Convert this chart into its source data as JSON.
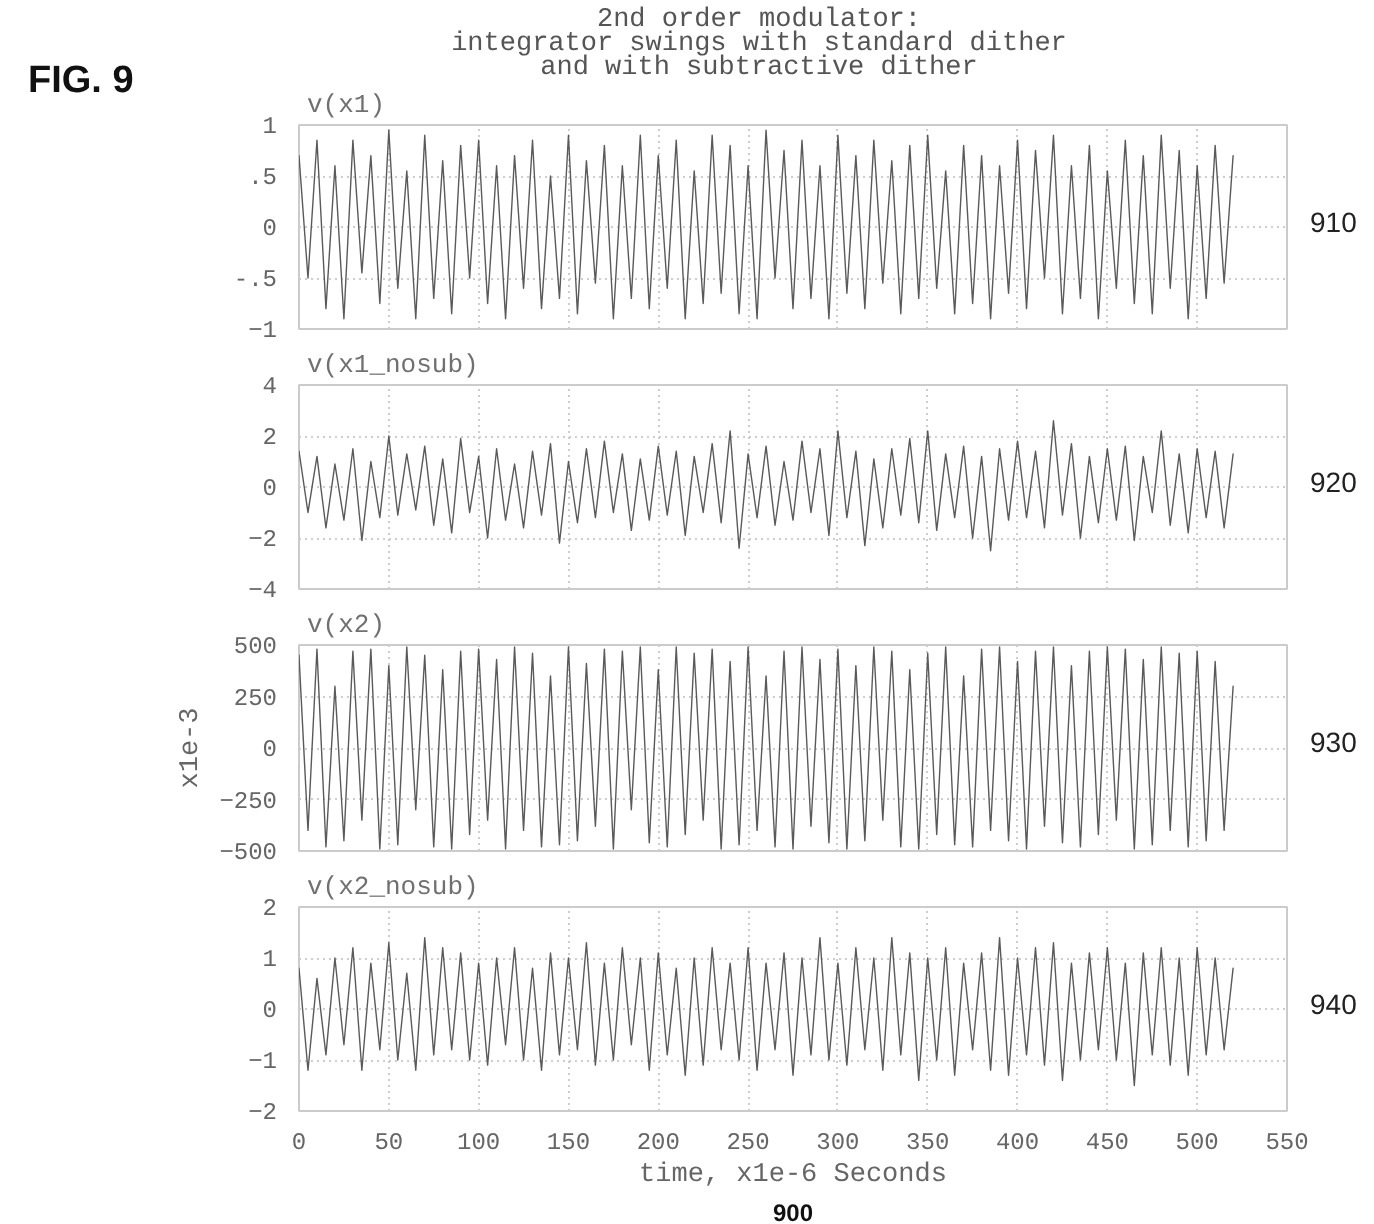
{
  "chart_data": [
    {
      "type": "line",
      "title": "2nd order modulator:\nintegrator swings with standard dither\nand with subtractive dither",
      "x": [
        0,
        5,
        10,
        15,
        20,
        25,
        30,
        35,
        40,
        45,
        50,
        55,
        60,
        65,
        70,
        75,
        80,
        85,
        90,
        95,
        100,
        105,
        110,
        115,
        120,
        125,
        130,
        135,
        140,
        145,
        150,
        155,
        160,
        165,
        170,
        175,
        180,
        185,
        190,
        195,
        200,
        205,
        210,
        215,
        220,
        225,
        230,
        235,
        240,
        245,
        250,
        255,
        260,
        265,
        270,
        275,
        280,
        285,
        290,
        295,
        300,
        305,
        310,
        315,
        320,
        325,
        330,
        335,
        340,
        345,
        350,
        355,
        360,
        365,
        370,
        375,
        380,
        385,
        390,
        395,
        400,
        405,
        410,
        415,
        420,
        425,
        430,
        435,
        440,
        445,
        450,
        455,
        460,
        465,
        470,
        475,
        480,
        485,
        490,
        495,
        500,
        505,
        510,
        515,
        520
      ],
      "series": [
        {
          "name": "v(x1)",
          "color": "#5a5a5a",
          "values": [
            0.7,
            -0.5,
            0.85,
            -0.8,
            0.6,
            -0.9,
            0.85,
            -0.45,
            0.7,
            -0.75,
            0.95,
            -0.6,
            0.55,
            -0.9,
            0.9,
            -0.7,
            0.65,
            -0.85,
            0.8,
            -0.5,
            0.85,
            -0.75,
            0.6,
            -0.9,
            0.7,
            -0.6,
            0.85,
            -0.8,
            0.5,
            -0.7,
            0.9,
            -0.85,
            0.65,
            -0.55,
            0.8,
            -0.9,
            0.6,
            -0.7,
            0.9,
            -0.8,
            0.7,
            -0.6,
            0.85,
            -0.9,
            0.55,
            -0.75,
            0.9,
            -0.65,
            0.8,
            -0.85,
            0.6,
            -0.9,
            0.95,
            -0.5,
            0.75,
            -0.8,
            0.85,
            -0.7,
            0.6,
            -0.9,
            0.9,
            -0.65,
            0.7,
            -0.8,
            0.85,
            -0.55,
            0.65,
            -0.85,
            0.8,
            -0.7,
            0.9,
            -0.6,
            0.55,
            -0.85,
            0.8,
            -0.75,
            0.7,
            -0.9,
            0.6,
            -0.65,
            0.85,
            -0.8,
            0.75,
            -0.5,
            0.9,
            -0.85,
            0.6,
            -0.7,
            0.8,
            -0.9,
            0.55,
            -0.6,
            0.85,
            -0.75,
            0.7,
            -0.85,
            0.9,
            -0.6,
            0.75,
            -0.9,
            0.6,
            -0.7,
            0.8,
            -0.55,
            0.7
          ]
        }
      ],
      "xlim": [
        0,
        550
      ],
      "xticks": [
        0,
        50,
        100,
        150,
        200,
        250,
        300,
        350,
        400,
        450,
        500,
        550
      ],
      "ylim": [
        -1,
        1
      ],
      "yticks": [
        -1,
        {
          "value": -0.5,
          "label": "-.5"
        },
        0,
        {
          "value": 0.5,
          "label": ".5"
        },
        1
      ],
      "grid": true,
      "tick_labels": "y",
      "annotations": [
        "910",
        "FIG. 9"
      ]
    },
    {
      "type": "line",
      "x": [
        0,
        5,
        10,
        15,
        20,
        25,
        30,
        35,
        40,
        45,
        50,
        55,
        60,
        65,
        70,
        75,
        80,
        85,
        90,
        95,
        100,
        105,
        110,
        115,
        120,
        125,
        130,
        135,
        140,
        145,
        150,
        155,
        160,
        165,
        170,
        175,
        180,
        185,
        190,
        195,
        200,
        205,
        210,
        215,
        220,
        225,
        230,
        235,
        240,
        245,
        250,
        255,
        260,
        265,
        270,
        275,
        280,
        285,
        290,
        295,
        300,
        305,
        310,
        315,
        320,
        325,
        330,
        335,
        340,
        345,
        350,
        355,
        360,
        365,
        370,
        375,
        380,
        385,
        390,
        395,
        400,
        405,
        410,
        415,
        420,
        425,
        430,
        435,
        440,
        445,
        450,
        455,
        460,
        465,
        470,
        475,
        480,
        485,
        490,
        495,
        500,
        505,
        510,
        515,
        520
      ],
      "series": [
        {
          "name": "v(x1_nosub)",
          "color": "#5a5a5a",
          "values": [
            1.4,
            -1.0,
            1.2,
            -1.6,
            0.9,
            -1.3,
            1.5,
            -2.1,
            1.0,
            -1.2,
            2.0,
            -1.1,
            1.3,
            -0.9,
            1.6,
            -1.5,
            1.1,
            -1.8,
            1.9,
            -1.0,
            1.2,
            -2.0,
            1.5,
            -1.3,
            0.9,
            -1.6,
            1.4,
            -1.1,
            1.7,
            -2.2,
            1.0,
            -1.4,
            1.5,
            -1.2,
            1.8,
            -1.0,
            1.3,
            -1.7,
            1.1,
            -1.3,
            1.6,
            -1.1,
            1.4,
            -1.9,
            1.2,
            -1.0,
            1.7,
            -1.4,
            2.2,
            -2.4,
            1.3,
            -1.2,
            1.6,
            -1.5,
            1.0,
            -1.3,
            1.8,
            -1.0,
            1.5,
            -1.9,
            2.2,
            -1.2,
            1.4,
            -2.3,
            1.1,
            -1.6,
            1.5,
            -1.1,
            1.9,
            -1.4,
            2.2,
            -1.7,
            1.3,
            -1.2,
            1.6,
            -2.0,
            1.2,
            -2.5,
            1.5,
            -1.3,
            1.8,
            -1.2,
            1.4,
            -1.6,
            2.6,
            -1.1,
            1.7,
            -2.0,
            1.2,
            -1.4,
            1.5,
            -1.3,
            1.6,
            -2.1,
            1.2,
            -1.0,
            2.2,
            -1.5,
            1.3,
            -1.8,
            1.5,
            -1.2,
            1.4,
            -1.6,
            1.3
          ]
        }
      ],
      "xlim": [
        0,
        550
      ],
      "xticks": [
        0,
        50,
        100,
        150,
        200,
        250,
        300,
        350,
        400,
        450,
        500,
        550
      ],
      "ylim": [
        -4,
        4
      ],
      "yticks": [
        -4,
        -2,
        0,
        2,
        4
      ],
      "grid": true,
      "tick_labels": "y",
      "annotations": [
        "920"
      ]
    },
    {
      "type": "line",
      "x": [
        0,
        5,
        10,
        15,
        20,
        25,
        30,
        35,
        40,
        45,
        50,
        55,
        60,
        65,
        70,
        75,
        80,
        85,
        90,
        95,
        100,
        105,
        110,
        115,
        120,
        125,
        130,
        135,
        140,
        145,
        150,
        155,
        160,
        165,
        170,
        175,
        180,
        185,
        190,
        195,
        200,
        205,
        210,
        215,
        220,
        225,
        230,
        235,
        240,
        245,
        250,
        255,
        260,
        265,
        270,
        275,
        280,
        285,
        290,
        295,
        300,
        305,
        310,
        315,
        320,
        325,
        330,
        335,
        340,
        345,
        350,
        355,
        360,
        365,
        370,
        375,
        380,
        385,
        390,
        395,
        400,
        405,
        410,
        415,
        420,
        425,
        430,
        435,
        440,
        445,
        450,
        455,
        460,
        465,
        470,
        475,
        480,
        485,
        490,
        495,
        500,
        505,
        510,
        515,
        520
      ],
      "series": [
        {
          "name": "v(x2)",
          "color": "#5a5a5a",
          "values": [
            450,
            -400,
            480,
            -480,
            300,
            -450,
            470,
            -350,
            480,
            -490,
            400,
            -470,
            490,
            -300,
            450,
            -480,
            380,
            -490,
            470,
            -420,
            480,
            -350,
            430,
            -490,
            490,
            -400,
            460,
            -480,
            350,
            -470,
            490,
            -450,
            410,
            -380,
            480,
            -490,
            470,
            -300,
            490,
            -460,
            380,
            -480,
            490,
            -420,
            460,
            -350,
            480,
            -490,
            420,
            -470,
            490,
            -400,
            350,
            -480,
            470,
            -490,
            490,
            -380,
            430,
            -460,
            480,
            -490,
            400,
            -450,
            490,
            -350,
            470,
            -480,
            380,
            -490,
            460,
            -420,
            490,
            -470,
            350,
            -480,
            480,
            -400,
            490,
            -450,
            420,
            -490,
            470,
            -380,
            490,
            -460,
            400,
            -480,
            470,
            -420,
            490,
            -350,
            480,
            -490,
            430,
            -470,
            490,
            -400,
            460,
            -480,
            470,
            -450,
            420,
            -400,
            300
          ]
        }
      ],
      "xlim": [
        0,
        550
      ],
      "xticks": [
        0,
        50,
        100,
        150,
        200,
        250,
        300,
        350,
        400,
        450,
        500,
        550
      ],
      "ylim": [
        -500,
        500
      ],
      "yticks": [
        -500,
        -250,
        0,
        250,
        500
      ],
      "ylabel": "x1e-3",
      "grid": true,
      "tick_labels": "y",
      "annotations": [
        "930"
      ]
    },
    {
      "type": "line",
      "x": [
        0,
        5,
        10,
        15,
        20,
        25,
        30,
        35,
        40,
        45,
        50,
        55,
        60,
        65,
        70,
        75,
        80,
        85,
        90,
        95,
        100,
        105,
        110,
        115,
        120,
        125,
        130,
        135,
        140,
        145,
        150,
        155,
        160,
        165,
        170,
        175,
        180,
        185,
        190,
        195,
        200,
        205,
        210,
        215,
        220,
        225,
        230,
        235,
        240,
        245,
        250,
        255,
        260,
        265,
        270,
        275,
        280,
        285,
        290,
        295,
        300,
        305,
        310,
        315,
        320,
        325,
        330,
        335,
        340,
        345,
        350,
        355,
        360,
        365,
        370,
        375,
        380,
        385,
        390,
        395,
        400,
        405,
        410,
        415,
        420,
        425,
        430,
        435,
        440,
        445,
        450,
        455,
        460,
        465,
        470,
        475,
        480,
        485,
        490,
        495,
        500,
        505,
        510,
        515,
        520
      ],
      "series": [
        {
          "name": "v(x2_nosub)",
          "color": "#5a5a5a",
          "values": [
            0.8,
            -1.2,
            0.6,
            -0.9,
            1.0,
            -0.7,
            1.2,
            -1.2,
            0.9,
            -0.8,
            1.3,
            -1.0,
            0.7,
            -1.2,
            1.4,
            -0.9,
            1.2,
            -0.8,
            1.1,
            -1.0,
            0.9,
            -1.1,
            1.0,
            -0.7,
            1.2,
            -1.0,
            0.8,
            -1.2,
            1.1,
            -0.9,
            1.0,
            -0.8,
            1.3,
            -1.1,
            0.9,
            -1.0,
            1.2,
            -0.7,
            1.0,
            -1.2,
            1.1,
            -0.9,
            0.8,
            -1.3,
            1.0,
            -1.1,
            1.2,
            -0.8,
            0.9,
            -1.0,
            1.2,
            -1.2,
            0.9,
            -0.8,
            1.1,
            -1.3,
            1.0,
            -0.9,
            1.4,
            -1.0,
            0.9,
            -1.1,
            1.2,
            -0.8,
            1.0,
            -1.2,
            1.4,
            -0.9,
            1.1,
            -1.4,
            1.0,
            -1.0,
            1.2,
            -1.3,
            0.9,
            -0.8,
            1.1,
            -1.2,
            1.4,
            -1.3,
            1.0,
            -0.9,
            1.2,
            -1.1,
            1.3,
            -1.4,
            0.9,
            -1.0,
            1.1,
            -0.8,
            1.2,
            -1.0,
            0.9,
            -1.5,
            1.1,
            -0.9,
            1.2,
            -1.1,
            1.0,
            -1.3,
            1.2,
            -0.9,
            1.0,
            -0.8,
            0.8
          ]
        }
      ],
      "xlim": [
        0,
        550
      ],
      "xticks": [
        0,
        50,
        100,
        150,
        200,
        250,
        300,
        350,
        400,
        450,
        500,
        550
      ],
      "ylim": [
        -2,
        2
      ],
      "yticks": [
        -2,
        -1,
        0,
        1,
        2
      ],
      "xlabel": "time, x1e-6 Seconds",
      "grid": true,
      "annotations": [
        "940",
        "900"
      ]
    }
  ]
}
